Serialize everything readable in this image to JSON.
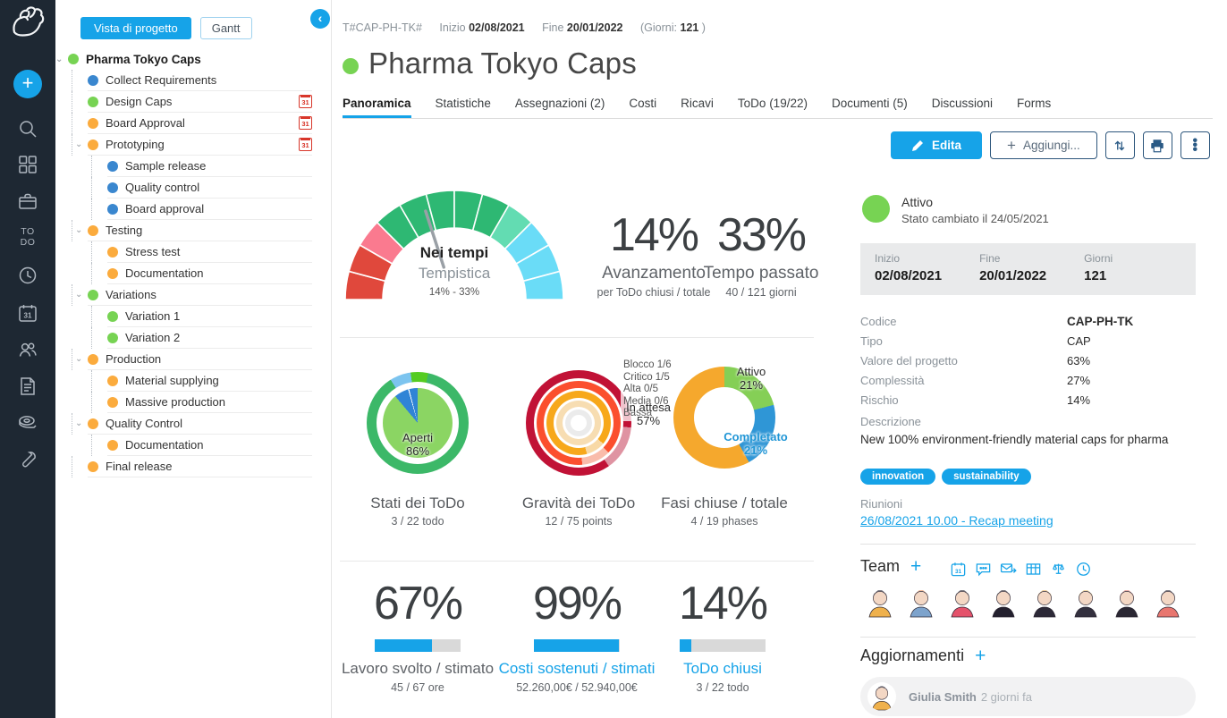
{
  "accent": "#16a3e8",
  "iconbar": {
    "logo": "twproject-logo",
    "icons": [
      "plus",
      "search",
      "dashboard",
      "briefcase",
      "todo",
      "clock",
      "calendar31",
      "users",
      "document",
      "tape",
      "wrench"
    ],
    "todo_label": "TO DO"
  },
  "tree_panel": {
    "view_button": "Vista di progetto",
    "gantt_button": "Gantt",
    "collapse_icon": "‹",
    "items": [
      {
        "label": "Pharma Tokyo Caps",
        "level": 0,
        "color": "#77d353",
        "chevron": true,
        "bold": true,
        "calendar": false
      },
      {
        "label": "Collect Requirements",
        "level": 1,
        "color": "#3a87cf",
        "chevron": false,
        "calendar": false
      },
      {
        "label": "Design Caps",
        "level": 1,
        "color": "#77d353",
        "chevron": false,
        "calendar": true
      },
      {
        "label": "Board Approval",
        "level": 1,
        "color": "#fbab3d",
        "chevron": false,
        "calendar": true
      },
      {
        "label": "Prototyping",
        "level": 1,
        "color": "#fbab3d",
        "chevron": true,
        "calendar": true
      },
      {
        "label": "Sample release",
        "level": 2,
        "color": "#3a87cf",
        "chevron": false,
        "calendar": false
      },
      {
        "label": "Quality control",
        "level": 2,
        "color": "#3a87cf",
        "chevron": false,
        "calendar": false
      },
      {
        "label": "Board approval",
        "level": 2,
        "color": "#3a87cf",
        "chevron": false,
        "calendar": false
      },
      {
        "label": "Testing",
        "level": 1,
        "color": "#fbab3d",
        "chevron": true,
        "calendar": false
      },
      {
        "label": "Stress test",
        "level": 2,
        "color": "#fbab3d",
        "chevron": false,
        "calendar": false
      },
      {
        "label": "Documentation",
        "level": 2,
        "color": "#fbab3d",
        "chevron": false,
        "calendar": false
      },
      {
        "label": "Variations",
        "level": 1,
        "color": "#77d353",
        "chevron": true,
        "calendar": false
      },
      {
        "label": "Variation 1",
        "level": 2,
        "color": "#77d353",
        "chevron": false,
        "calendar": false
      },
      {
        "label": "Variation 2",
        "level": 2,
        "color": "#77d353",
        "chevron": false,
        "calendar": false
      },
      {
        "label": "Production",
        "level": 1,
        "color": "#fbab3d",
        "chevron": true,
        "calendar": false
      },
      {
        "label": "Material supplying",
        "level": 2,
        "color": "#fbab3d",
        "chevron": false,
        "calendar": false
      },
      {
        "label": "Massive production",
        "level": 2,
        "color": "#fbab3d",
        "chevron": false,
        "calendar": false
      },
      {
        "label": "Quality Control",
        "level": 1,
        "color": "#fbab3d",
        "chevron": true,
        "calendar": false
      },
      {
        "label": "Documentation",
        "level": 2,
        "color": "#fbab3d",
        "chevron": false,
        "calendar": false
      },
      {
        "label": "Final release",
        "level": 1,
        "color": "#fbab3d",
        "chevron": false,
        "calendar": false
      }
    ]
  },
  "header": {
    "code": "T#CAP-PH-TK#",
    "start_label": "Inizio",
    "start_date": "02/08/2021",
    "end_label": "Fine",
    "end_date": "20/01/2022",
    "days_prefix": "(Giorni:",
    "days": "121",
    "days_suffix": ")",
    "title": "Pharma Tokyo Caps",
    "status_color": "#77d353"
  },
  "tabs": [
    {
      "label": "Panoramica",
      "active": true
    },
    {
      "label": "Statistiche",
      "active": false
    },
    {
      "label": "Assegnazioni (2)",
      "active": false
    },
    {
      "label": "Costi",
      "active": false
    },
    {
      "label": "Ricavi",
      "active": false
    },
    {
      "label": "ToDo (19/22)",
      "active": false
    },
    {
      "label": "Documenti (5)",
      "active": false
    },
    {
      "label": "Discussioni",
      "active": false
    },
    {
      "label": "Forms",
      "active": false
    }
  ],
  "toolbar": {
    "edit_label": "Edita",
    "add_label": "Aggiungi...",
    "icon_buttons": [
      "sort",
      "print",
      "more"
    ]
  },
  "chart_data": {
    "gauge": {
      "type": "gauge",
      "title": "Nei tempi",
      "subtitle": "Tempistica",
      "range_label": "14% - 33%",
      "needle_angle_deg": 108,
      "segment_colors": [
        "#e0483c",
        "#e0483c",
        "#fa7a8f",
        "#2eb873",
        "#2eb873",
        "#2eb873",
        "#2eb873",
        "#2eb873",
        "#63dcb2",
        "#6adcf7",
        "#6adcf7",
        "#6adcf7"
      ]
    },
    "big_stats": [
      {
        "value": "14%",
        "label": "Avanzamento",
        "sub": "per ToDo chiusi / totale"
      },
      {
        "value": "33%",
        "label": "Tempo passato",
        "sub": "40 / 121 giorni"
      }
    ],
    "donut_states": {
      "type": "pie",
      "title": "Stati dei ToDo",
      "sub": "3 / 22 todo",
      "center_label": "Aperti",
      "center_value": "86%",
      "outer_arcs": [
        [
          0,
          12,
          "#55cc22"
        ],
        [
          12,
          328,
          "#3cb868"
        ],
        [
          328,
          352,
          "#7cc4ef"
        ],
        [
          352,
          360,
          "#55cc22"
        ]
      ],
      "inner_arcs": [
        [
          0,
          320,
          "#8bd563"
        ],
        [
          320,
          344,
          "#3084d6"
        ],
        [
          344,
          346,
          "#ffffff"
        ],
        [
          346,
          360,
          "#3084d6"
        ]
      ]
    },
    "rings_gravity": {
      "type": "rings",
      "title": "Gravità dei ToDo",
      "sub": "12 / 75 points",
      "legend": [
        "Blocco 1/6",
        "Critico 1/5",
        "Alta 0/5",
        "Media 0/6",
        "Bassa"
      ],
      "rings": [
        {
          "d": 118,
          "hole": 100,
          "arcs": [
            [
              0,
              57,
              "#c11236"
            ],
            [
              75,
              95,
              "#c11236"
            ],
            [
              95,
              145,
              "#df93a2"
            ],
            [
              145,
              360,
              "#c11236"
            ]
          ]
        },
        {
          "d": 94,
          "hole": 78,
          "arcs": [
            [
              0,
              15,
              "#fb4f2e"
            ],
            [
              100,
              135,
              "#fb4f2e"
            ],
            [
              135,
              175,
              "#f9bcab"
            ],
            [
              175,
              360,
              "#fb4f2e"
            ]
          ]
        },
        {
          "d": 72,
          "hole": 56,
          "arcs": [
            [
              0,
              15,
              "#f7a81b"
            ],
            [
              105,
              130,
              "#f7a81b"
            ],
            [
              130,
              165,
              "#f8d9a6"
            ],
            [
              165,
              360,
              "#f7a81b"
            ]
          ]
        },
        {
          "d": 50,
          "hole": 36,
          "arcs": [
            [
              0,
              15,
              "#f7ddb2"
            ],
            [
              110,
              360,
              "#f7ddb2"
            ]
          ]
        },
        {
          "d": 30,
          "hole": 18,
          "arcs": [
            [
              0,
              15,
              "#ebebeb"
            ],
            [
              115,
              360,
              "#ebebeb"
            ]
          ]
        }
      ]
    },
    "donut_phases": {
      "type": "donut",
      "title": "Fasi chiuse / totale",
      "sub": "4 / 19 phases",
      "arcs": [
        [
          0,
          75.6,
          "#85cf56"
        ],
        [
          75.6,
          151.2,
          "#2f96d6"
        ],
        [
          151.2,
          360,
          "#f5a82d"
        ]
      ],
      "labels": [
        {
          "text": "Attivo",
          "value": "21%",
          "kind": "plain"
        },
        {
          "text": "Completato",
          "value": "21%",
          "kind": "completato"
        },
        {
          "text": "In attesa",
          "value": "57%",
          "kind": "plain"
        }
      ]
    },
    "progress": [
      {
        "value": "67%",
        "pct": 67,
        "label": "Lavoro svolto / stimato",
        "sub": "45 / 67 ore",
        "link": false
      },
      {
        "value": "99%",
        "pct": 99,
        "label": "Costi sostenuti / stimati",
        "sub": "52.260,00€ / 52.940,00€",
        "link": true
      },
      {
        "value": "14%",
        "pct": 14,
        "label": "ToDo chiusi",
        "sub": "3 / 22 todo",
        "link": true
      }
    ]
  },
  "details": {
    "status": "Attivo",
    "status_note": "Stato cambiato il 24/05/2021",
    "datebox": [
      {
        "label": "Inizio",
        "value": "02/08/2021"
      },
      {
        "label": "Fine",
        "value": "20/01/2022"
      },
      {
        "label": "Giorni",
        "value": "121"
      }
    ],
    "fields": [
      {
        "label": "Codice",
        "value": "CAP-PH-TK"
      },
      {
        "label": "Tipo",
        "value": "CAP"
      },
      {
        "label": "Valore del progetto",
        "value": "63%"
      },
      {
        "label": "Complessità",
        "value": "27%"
      },
      {
        "label": "Rischio",
        "value": "14%"
      }
    ],
    "description_label": "Descrizione",
    "description": "New 100% environment-friendly material caps for pharma",
    "tags": [
      "innovation",
      "sustainability"
    ],
    "meetings_label": "Riunioni",
    "meeting_link": "26/08/2021 10.00 - Recap meeting"
  },
  "team": {
    "title": "Team",
    "add_label": "+",
    "icons": [
      "calendar31",
      "chat",
      "mail-forward",
      "table",
      "scales",
      "clock"
    ],
    "members": [
      {
        "hair": "#2d2a3a",
        "shirt": "#efb14c"
      },
      {
        "hair": "#e8915f",
        "shirt": "#7da3cc"
      },
      {
        "hair": "#2a2733",
        "shirt": "#e4526b"
      },
      {
        "hair": "#2a2733",
        "shirt": "#23202e"
      },
      {
        "hair": "#e8b05c",
        "shirt": "#2c2937"
      },
      {
        "hair": "#e6c06b",
        "shirt": "#33303e"
      },
      {
        "hair": "#e07b75",
        "shirt": "#2a2733"
      },
      {
        "hair": "#35303d",
        "shirt": "#e8766f"
      }
    ],
    "skin": "#f3d7c4"
  },
  "updates": {
    "title": "Aggiornamenti",
    "add_label": "+",
    "entry": {
      "name": "Giulia Smith",
      "time": "2 giorni fa"
    }
  }
}
